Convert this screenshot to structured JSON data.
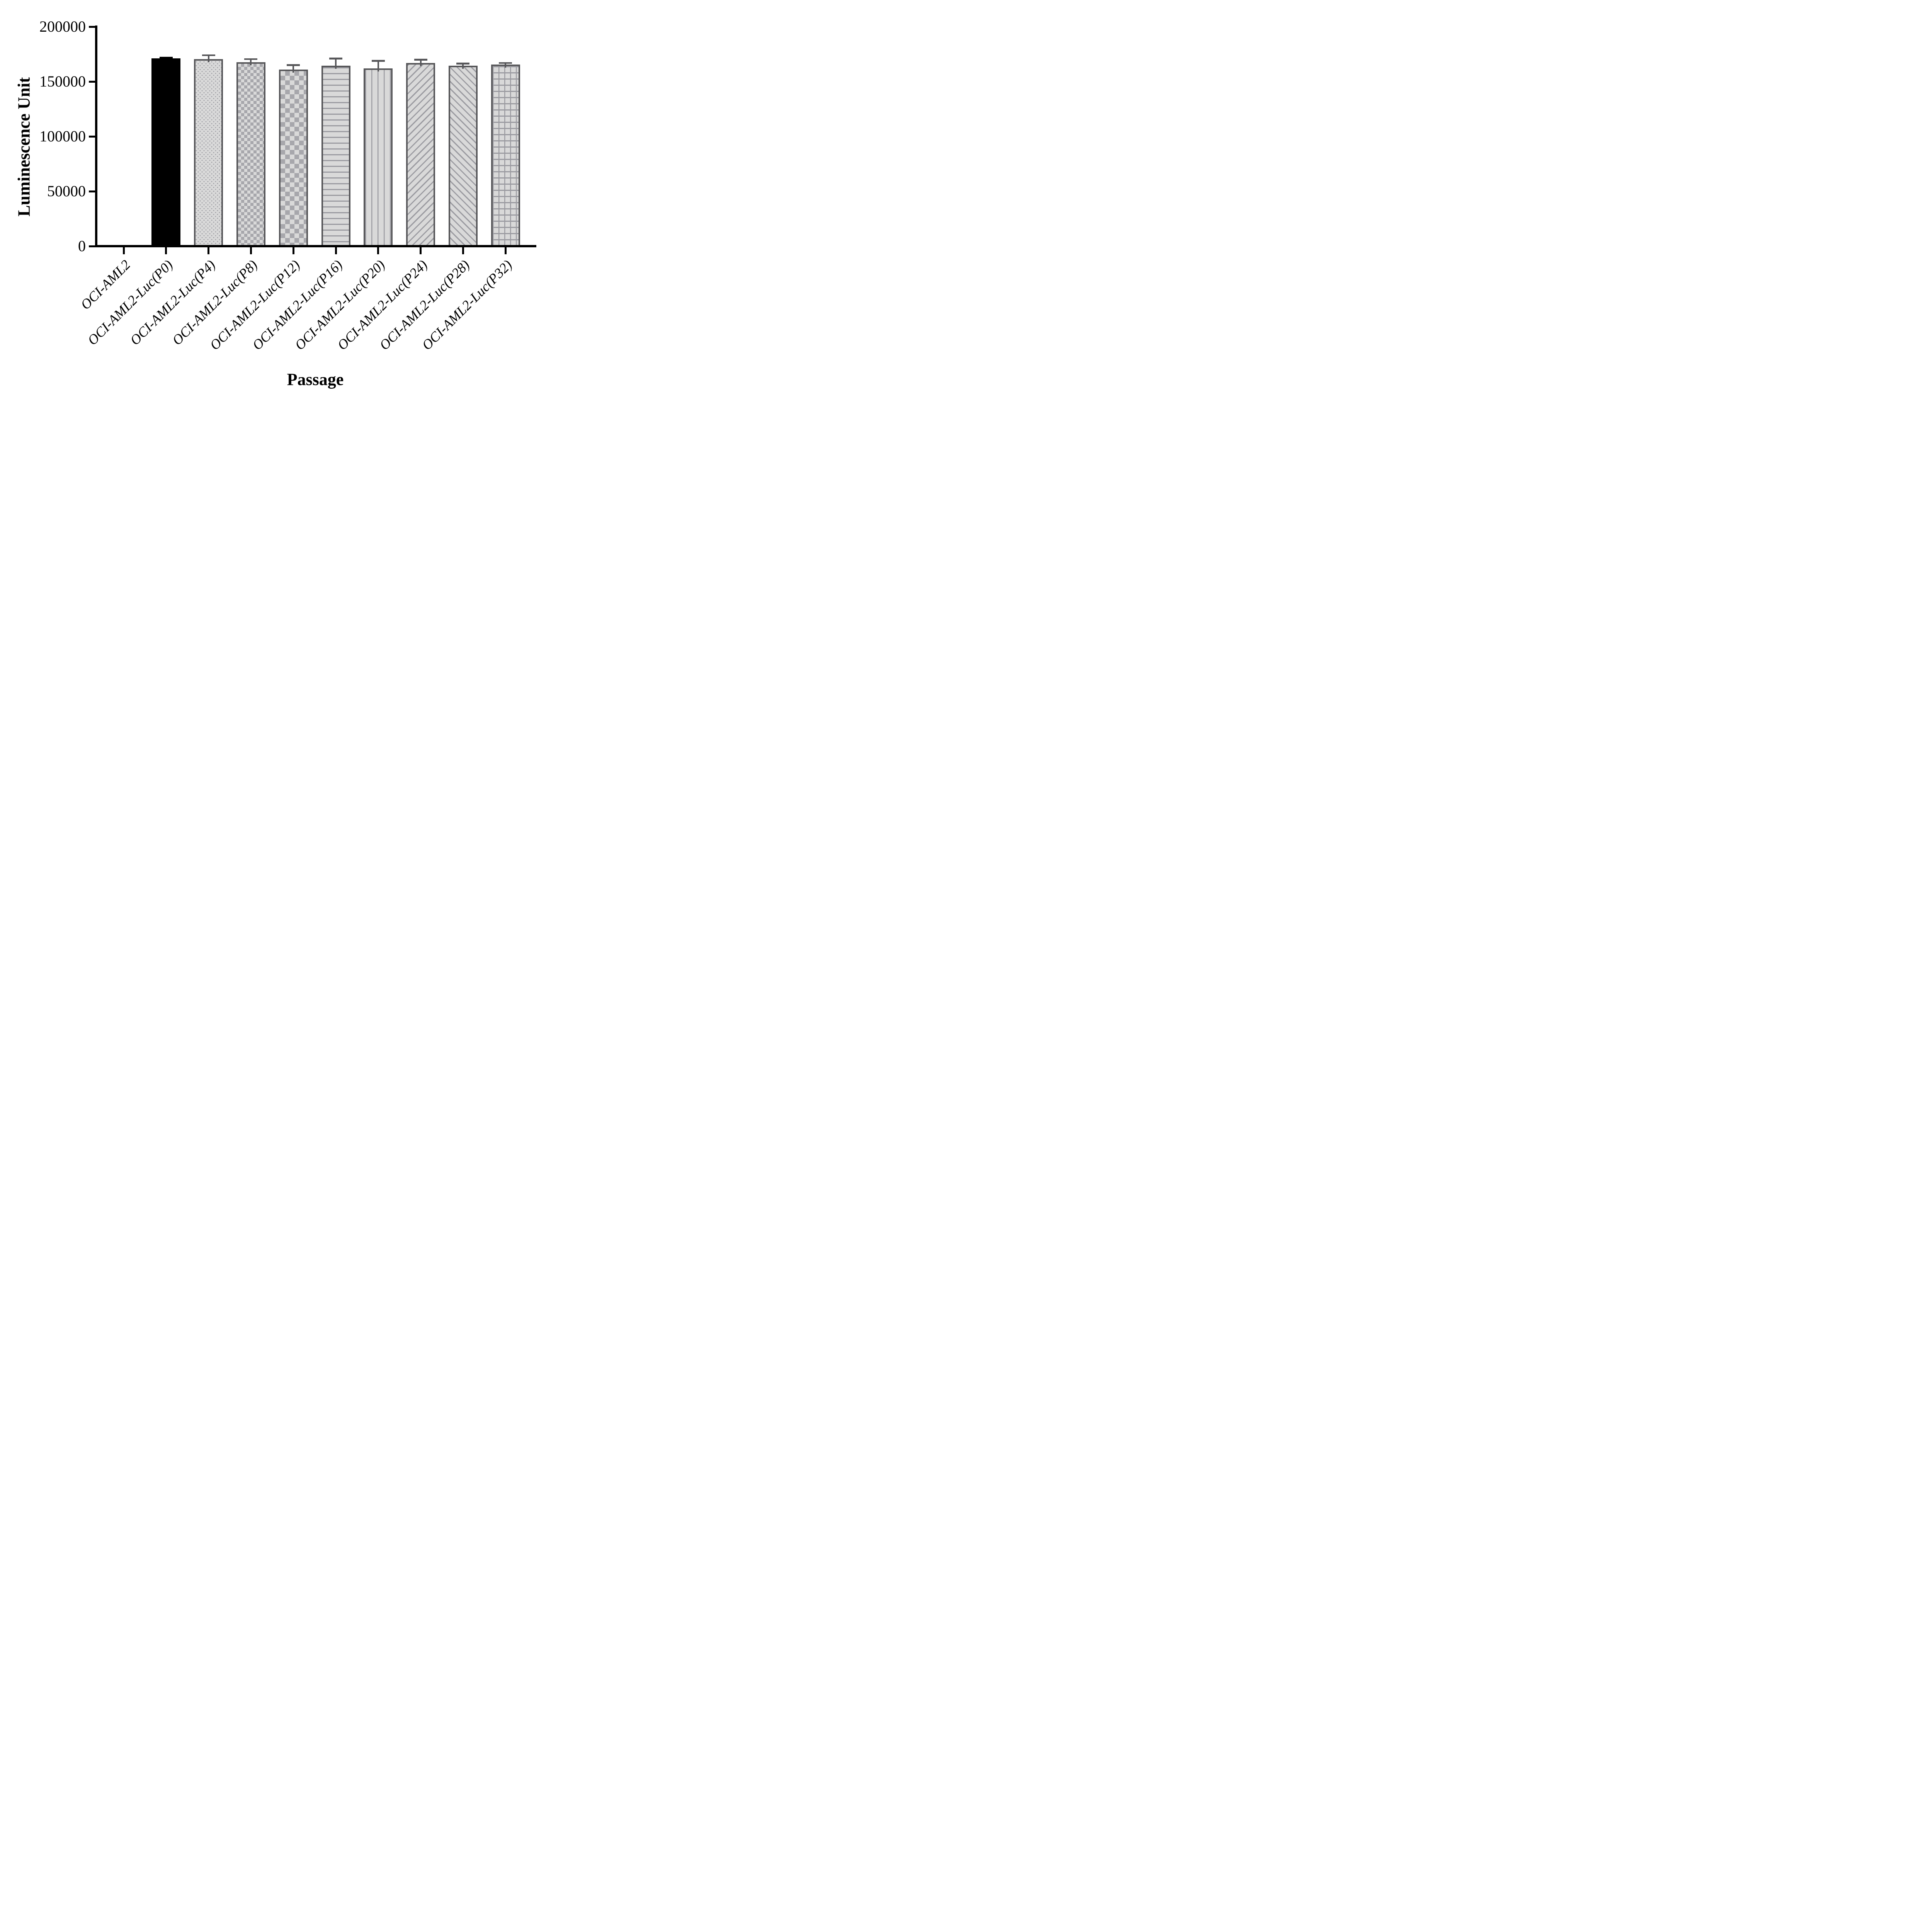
{
  "chart_data": {
    "type": "bar",
    "title": "",
    "xlabel": "Passage",
    "ylabel": "Luminescence Unit",
    "ylim": [
      0,
      200000
    ],
    "ytick_values": [
      0,
      50000,
      100000,
      150000,
      200000
    ],
    "ytick_labels": [
      "0",
      "50000",
      "100000",
      "150000",
      "200000"
    ],
    "grid": false,
    "legend_position": "none",
    "error_bars": "upper only, capped (SD)",
    "categories": [
      "OCI-AML2",
      "OCI-AML2-Luc(P0)",
      "OCI-AML2-Luc(P4)",
      "OCI-AML2-Luc(P8)",
      "OCI-AML2-Luc(P12)",
      "OCI-AML2-Luc(P16)",
      "OCI-AML2-Luc(P20)",
      "OCI-AML2-Luc(P24)",
      "OCI-AML2-Luc(P28)",
      "OCI-AML2-Luc(P32)"
    ],
    "values": [
      0,
      171000,
      170500,
      167500,
      161000,
      164500,
      162000,
      167000,
      164500,
      165500
    ],
    "errors": [
      0,
      1000,
      3500,
      3000,
      4000,
      6500,
      7000,
      3000,
      2000,
      1500
    ],
    "bar_patterns": [
      "none",
      "solid-black",
      "dots",
      "checker-fine",
      "checker-coarse",
      "h-lines",
      "v-lines",
      "diag-up",
      "diag-down",
      "grid"
    ],
    "colors": {
      "axis": "#000000",
      "bar_border": "#57575a",
      "bar_fill_light": "#d9d9d9",
      "pattern_gray": "#9b9ba1",
      "black_bar": "#000000",
      "background": "#ffffff"
    }
  }
}
